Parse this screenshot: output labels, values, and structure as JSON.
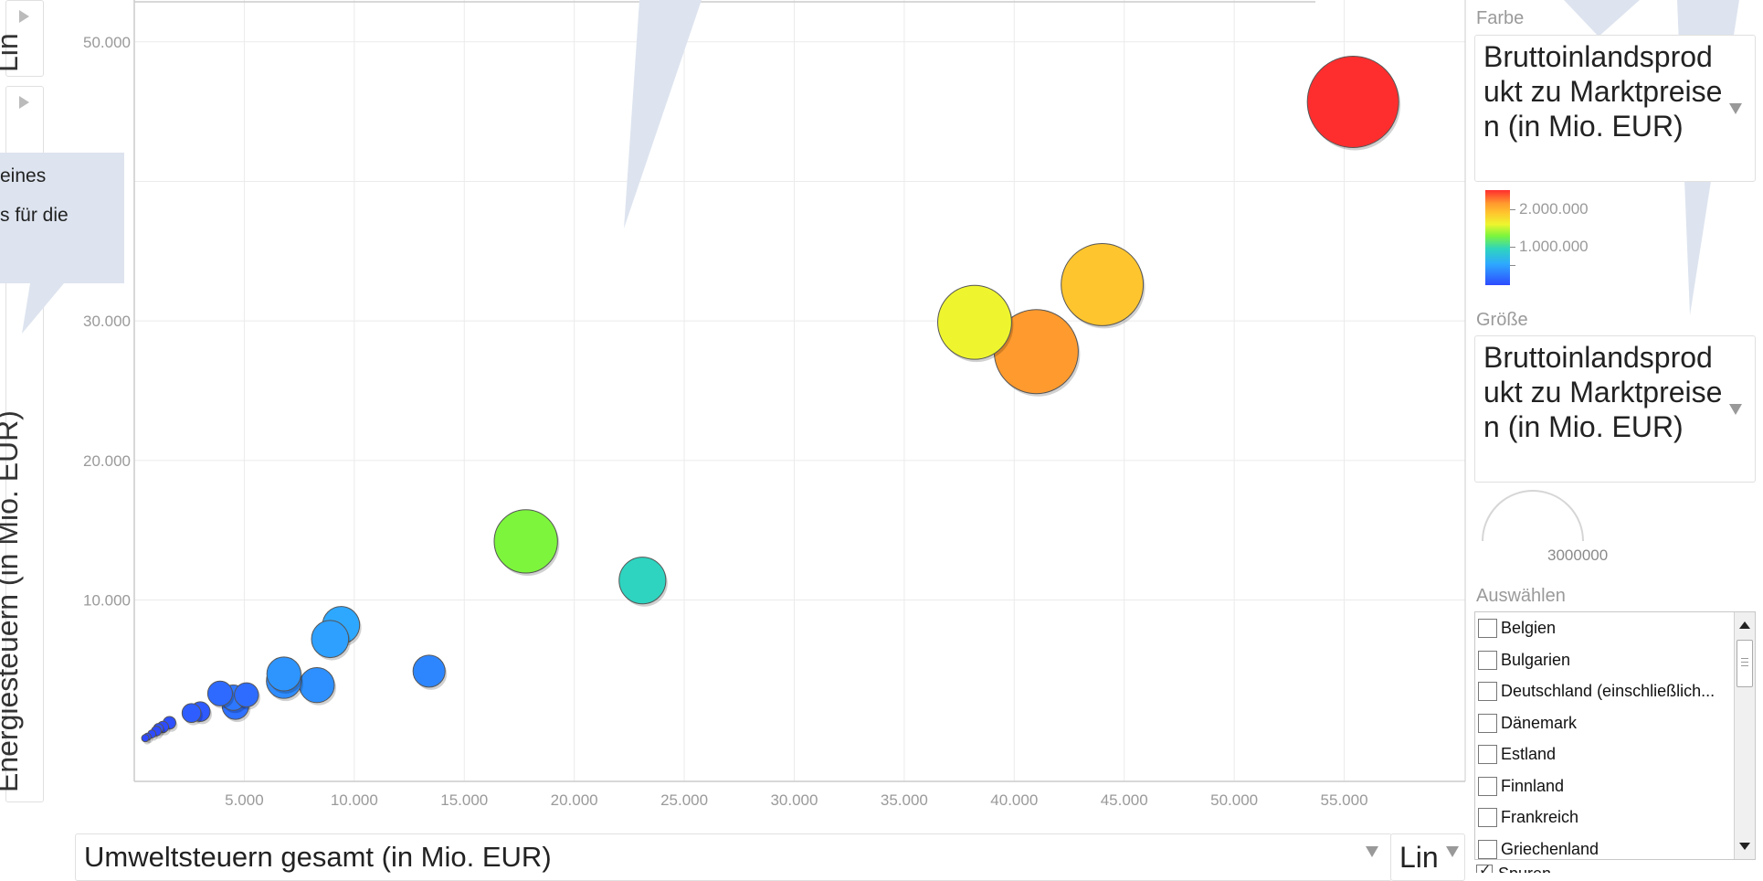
{
  "axes": {
    "y_selector": {
      "label": "Energiesteuern (in Mio. EUR)"
    },
    "y_scale_top": {
      "label": "Lin"
    },
    "x_selector": {
      "label": "Umweltsteuern gesamt (in Mio. EUR)"
    },
    "x_scale": {
      "label": "Lin"
    }
  },
  "tooltip": {
    "line1": "eines",
    "line2": "s für die"
  },
  "panel": {
    "color_label": "Farbe",
    "color_value": "Bruttoinlandsprodukt zu Marktpreisen (in Mio. EUR)",
    "color_legend": [
      "2.000.000",
      "1.000.000"
    ],
    "size_label": "Größe",
    "size_value": "Bruttoinlandsprodukt zu Marktpreisen (in Mio. EUR)",
    "size_legend_value": "3000000",
    "select_label": "Auswählen",
    "select_items": [
      "Belgien",
      "Bulgarien",
      "Deutschland (einschließlich...",
      "Dänemark",
      "Estland",
      "Finnland",
      "Frankreich",
      "Griechenland"
    ],
    "trails_label": "Spuren"
  },
  "colors": {
    "grid": "#ebebeb",
    "axis": "#cccccc",
    "tick_text": "#9a9a9a",
    "bubble_stroke": "#555555",
    "callout": "#dde4ef"
  },
  "chart_data": {
    "type": "scatter",
    "xlabel": "Umweltsteuern gesamt (in Mio. EUR)",
    "ylabel": "Energiesteuern (in Mio. EUR)",
    "xlim": [
      0,
      60500
    ],
    "ylim": [
      -3000,
      53000
    ],
    "x_ticks": [
      5000,
      10000,
      15000,
      20000,
      25000,
      30000,
      35000,
      40000,
      45000,
      50000,
      55000
    ],
    "x_tick_labels": [
      "5.000",
      "10.000",
      "15.000",
      "20.000",
      "25.000",
      "30.000",
      "35.000",
      "40.000",
      "45.000",
      "50.000",
      "55.000"
    ],
    "y_ticks": [
      10000,
      20000,
      30000,
      40000,
      50000
    ],
    "y_tick_labels": [
      "10.000",
      "20.000",
      "30.000",
      "",
      "50.000"
    ],
    "grid": true,
    "color_scale": {
      "min": 0,
      "max": 2500000,
      "colors": [
        "#2d4bff",
        "#2ea8ff",
        "#2ed4c0",
        "#7cf53c",
        "#eef52e",
        "#ffc52e",
        "#ff9a2e",
        "#ff2e2e"
      ]
    },
    "points": [
      {
        "x": 55400,
        "y": 45700,
        "size": 2600000,
        "color": "#ff2e2e"
      },
      {
        "x": 44000,
        "y": 32600,
        "size": 2100000,
        "color": "#ffc52e"
      },
      {
        "x": 41000,
        "y": 27800,
        "size": 2200000,
        "color": "#ff9a2e"
      },
      {
        "x": 38200,
        "y": 29900,
        "size": 1700000,
        "color": "#eef52e"
      },
      {
        "x": 17800,
        "y": 14200,
        "size": 1250000,
        "color": "#7cf53c"
      },
      {
        "x": 23100,
        "y": 11400,
        "size": 680000,
        "color": "#2ed4c0"
      },
      {
        "x": 13400,
        "y": 4900,
        "size": 320000,
        "color": "#2e86ff"
      },
      {
        "x": 9400,
        "y": 8200,
        "size": 430000,
        "color": "#2ea8ff"
      },
      {
        "x": 8900,
        "y": 7200,
        "size": 430000,
        "color": "#2ea0ff"
      },
      {
        "x": 8300,
        "y": 3900,
        "size": 380000,
        "color": "#2e90ff"
      },
      {
        "x": 6800,
        "y": 4200,
        "size": 380000,
        "color": "#2e8cff"
      },
      {
        "x": 6800,
        "y": 4700,
        "size": 360000,
        "color": "#2e95ff"
      },
      {
        "x": 5100,
        "y": 3200,
        "size": 180000,
        "color": "#2e6cff"
      },
      {
        "x": 4600,
        "y": 2400,
        "size": 220000,
        "color": "#2e70ff"
      },
      {
        "x": 4500,
        "y": 3000,
        "size": 200000,
        "color": "#2e78ff"
      },
      {
        "x": 3900,
        "y": 3300,
        "size": 190000,
        "color": "#2e6aff"
      },
      {
        "x": 3000,
        "y": 2000,
        "size": 120000,
        "color": "#2e5aff"
      },
      {
        "x": 2600,
        "y": 1900,
        "size": 110000,
        "color": "#2e5eff"
      },
      {
        "x": 1600,
        "y": 1200,
        "size": 50000,
        "color": "#2e50ff"
      },
      {
        "x": 1300,
        "y": 900,
        "size": 40000,
        "color": "#2e4cff"
      },
      {
        "x": 1100,
        "y": 800,
        "size": 30000,
        "color": "#2e50ff"
      },
      {
        "x": 1000,
        "y": 600,
        "size": 30000,
        "color": "#2e4aff"
      },
      {
        "x": 800,
        "y": 400,
        "size": 20000,
        "color": "#2e4aff"
      },
      {
        "x": 600,
        "y": 200,
        "size": 15000,
        "color": "#2e4aff"
      },
      {
        "x": 500,
        "y": 100,
        "size": 10000,
        "color": "#2e48ff"
      }
    ]
  }
}
